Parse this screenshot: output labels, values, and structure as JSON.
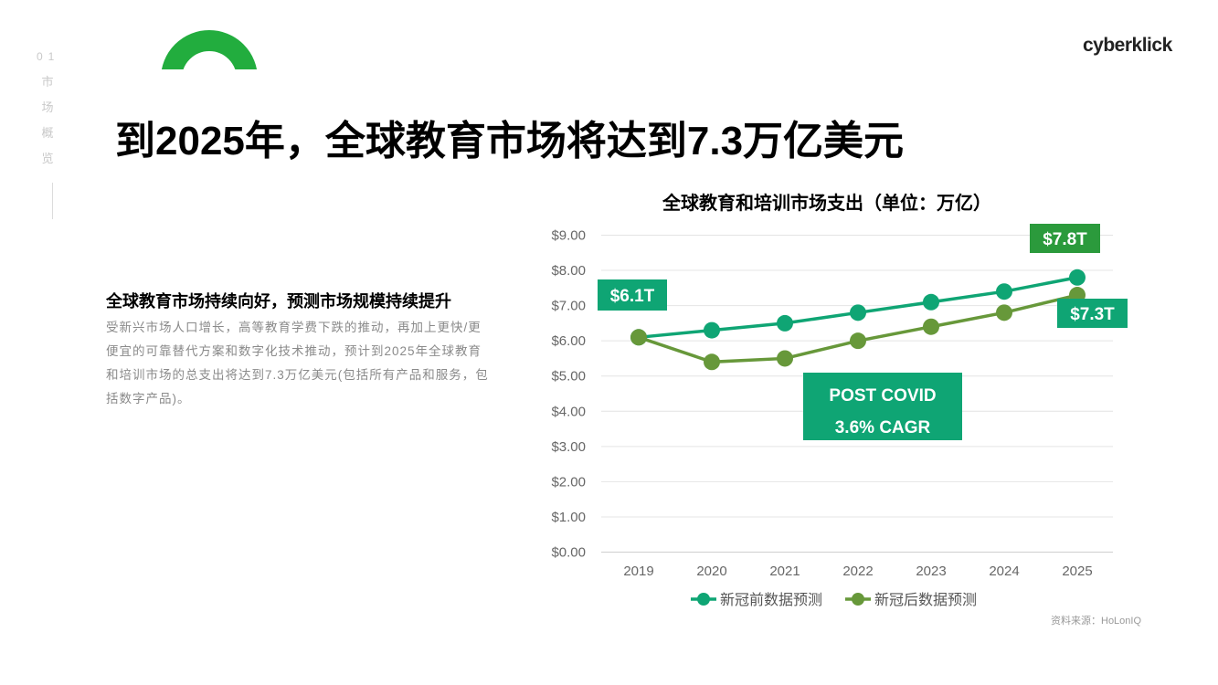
{
  "side_nav": {
    "number": "01",
    "chars": [
      "市",
      "场",
      "概",
      "览"
    ]
  },
  "logo": {
    "text_a": "cyberklick",
    "accent_color": "#22a83a"
  },
  "page_title": "到2025年，全球教育市场将达到7.3万亿美元",
  "left": {
    "heading": "全球教育市场持续向好，预测市场规模持续提升",
    "body": "受新兴市场人口增长，高等教育学费下跌的推动，再加上更快/更便宜的可靠替代方案和数字化技术推动，预计到2025年全球教育和培训市场的总支出将达到7.3万亿美元(包括所有产品和服务，包括数字产品)。"
  },
  "chart_data": {
    "type": "line",
    "title": "全球教育和培训市场支出（单位：万亿）",
    "categories": [
      "2019",
      "2020",
      "2021",
      "2022",
      "2023",
      "2024",
      "2025"
    ],
    "y_tick_labels": [
      "$0.00",
      "$1.00",
      "$2.00",
      "$3.00",
      "$4.00",
      "$5.00",
      "$6.00",
      "$7.00",
      "$8.00",
      "$9.00"
    ],
    "ylim": [
      0,
      9
    ],
    "grid": true,
    "legend_position": "bottom",
    "series": [
      {
        "name": "新冠前数据预测",
        "color": "#0fa574",
        "values": [
          6.1,
          6.3,
          6.5,
          6.8,
          7.1,
          7.4,
          7.8
        ]
      },
      {
        "name": "新冠后数据预测",
        "color": "#67983a",
        "values": [
          6.1,
          5.4,
          5.5,
          6.0,
          6.4,
          6.8,
          7.3
        ]
      }
    ],
    "annotations": [
      {
        "text": "$6.1T",
        "color": "#0fa574"
      },
      {
        "text": "$7.8T",
        "color": "#2b9a3c"
      },
      {
        "text": "$7.3T",
        "color": "#0fa574"
      },
      {
        "text": "POST COVID",
        "text2": "3.6% CAGR",
        "color": "#0fa574"
      }
    ]
  },
  "source": "资料来源：HoLonIQ"
}
